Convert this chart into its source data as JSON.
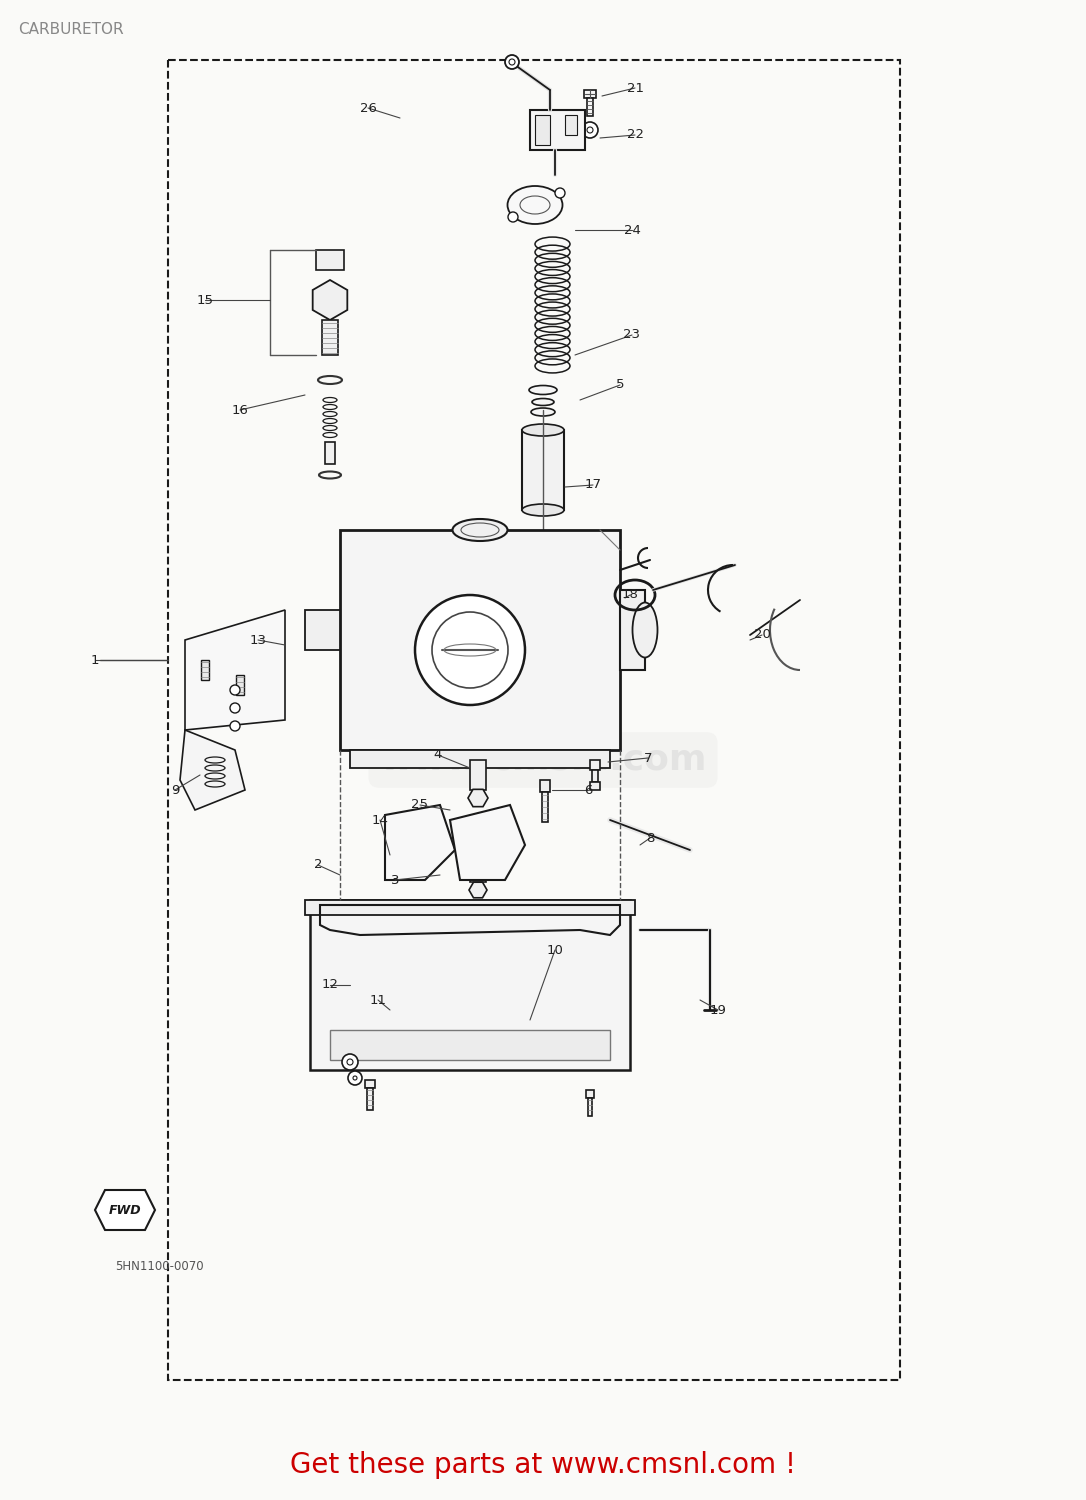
{
  "title": "CARBURETOR",
  "footer_text": "Get these parts at www.cmsnl.com !",
  "footer_color": "#cc0000",
  "part_number": "5HN1100-0070",
  "bg_color": "#fafaf8",
  "border_color": "#1a1a1a",
  "text_color": "#333333",
  "label_color": "#222222",
  "fig_width": 10.86,
  "fig_height": 15.0,
  "title_fontsize": 11,
  "footer_fontsize": 20,
  "label_fontsize": 9.5
}
